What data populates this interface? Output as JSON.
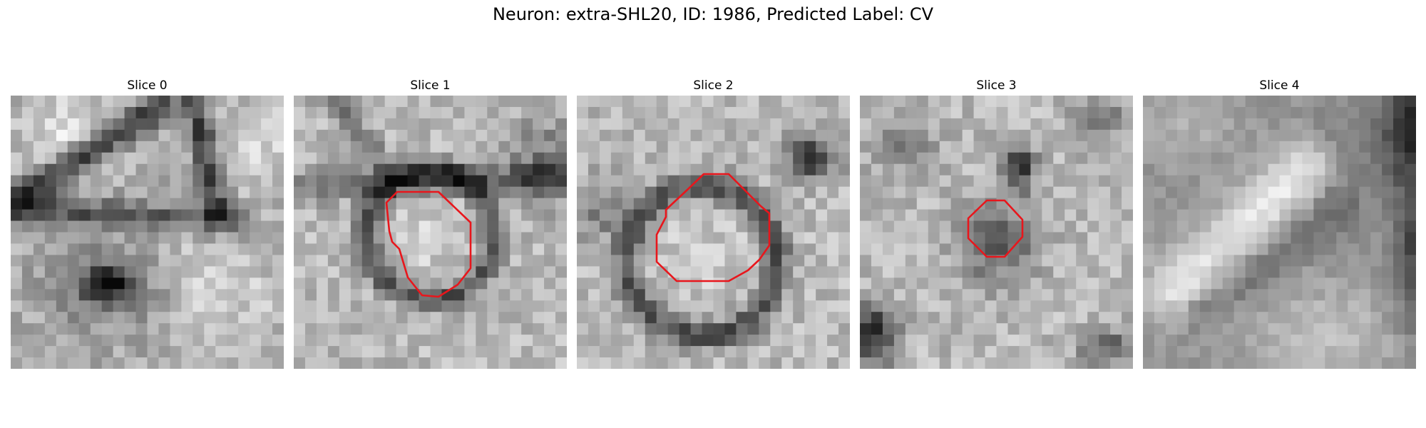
{
  "figure": {
    "title": "Neuron: extra-SHL20, ID: 1986, Predicted Label: CV"
  },
  "slices": [
    {
      "label": "Slice 0",
      "contour": false
    },
    {
      "label": "Slice 1",
      "contour": true
    },
    {
      "label": "Slice 2",
      "contour": true
    },
    {
      "label": "Slice 3",
      "contour": true
    },
    {
      "label": "Slice 4",
      "contour": false
    }
  ],
  "colors": {
    "contour": "#e8161c",
    "background": "#ffffff"
  }
}
